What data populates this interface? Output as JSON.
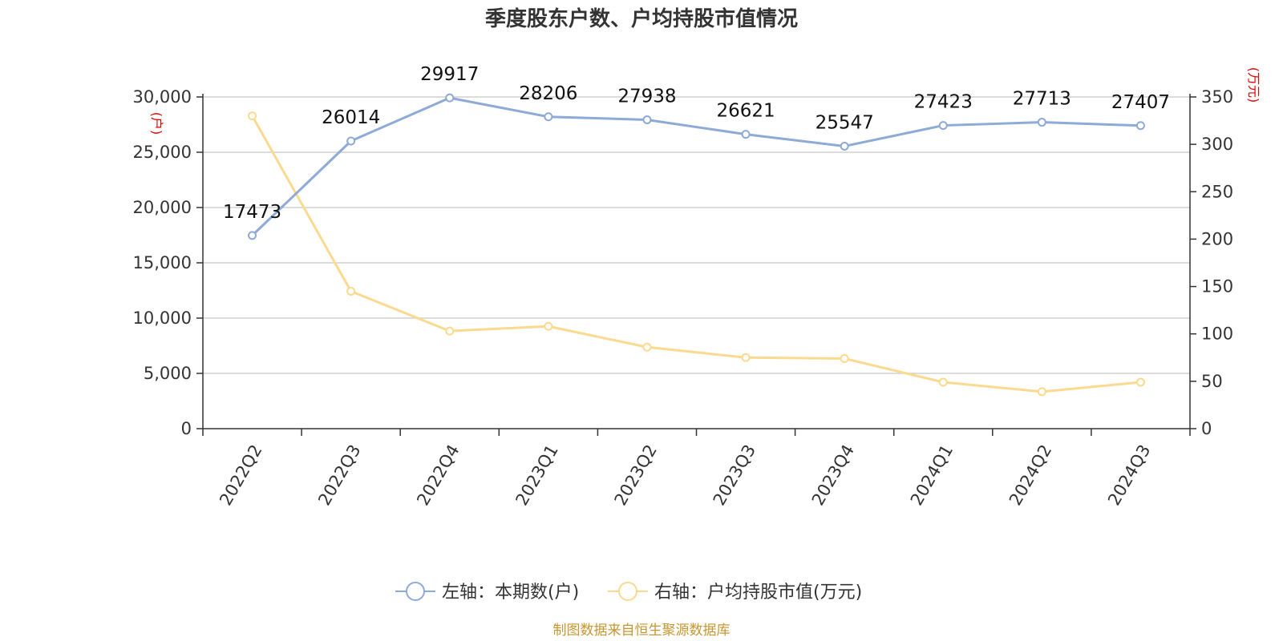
{
  "chart_data": {
    "type": "line",
    "title": "季度股东户数、户均持股市值情况",
    "categories": [
      "2022Q2",
      "2022Q3",
      "2022Q4",
      "2023Q1",
      "2023Q2",
      "2023Q3",
      "2023Q4",
      "2024Q1",
      "2024Q2",
      "2024Q3"
    ],
    "left_axis": {
      "unit_label": "(户)",
      "ylim": [
        0,
        30000
      ],
      "ticks": [
        0,
        5000,
        10000,
        15000,
        20000,
        25000,
        30000
      ],
      "tick_labels": [
        "0",
        "5,000",
        "10,000",
        "15,000",
        "20,000",
        "25,000",
        "30,000"
      ]
    },
    "right_axis": {
      "unit_label": "(万元)",
      "ylim": [
        0,
        350
      ],
      "ticks": [
        0,
        50,
        100,
        150,
        200,
        250,
        300,
        350
      ],
      "tick_labels": [
        "0",
        "50",
        "100",
        "150",
        "200",
        "250",
        "300",
        "350"
      ]
    },
    "series": [
      {
        "name": "左轴：本期数(户)",
        "axis": "left",
        "color": "#8eaad6",
        "values": [
          17473,
          26014,
          29917,
          28206,
          27938,
          26621,
          25547,
          27423,
          27713,
          27407
        ],
        "data_labels": [
          "17473",
          "26014",
          "29917",
          "28206",
          "27938",
          "26621",
          "25547",
          "27423",
          "27713",
          "27407"
        ]
      },
      {
        "name": "右轴：户均持股市值(万元)",
        "axis": "right",
        "color": "#fbd98f",
        "values": [
          330,
          145,
          103,
          108,
          86,
          75,
          74,
          49,
          39,
          49
        ]
      }
    ],
    "grid": true,
    "legend_position": "bottom-center",
    "source": "制图数据来自恒生聚源数据库"
  }
}
